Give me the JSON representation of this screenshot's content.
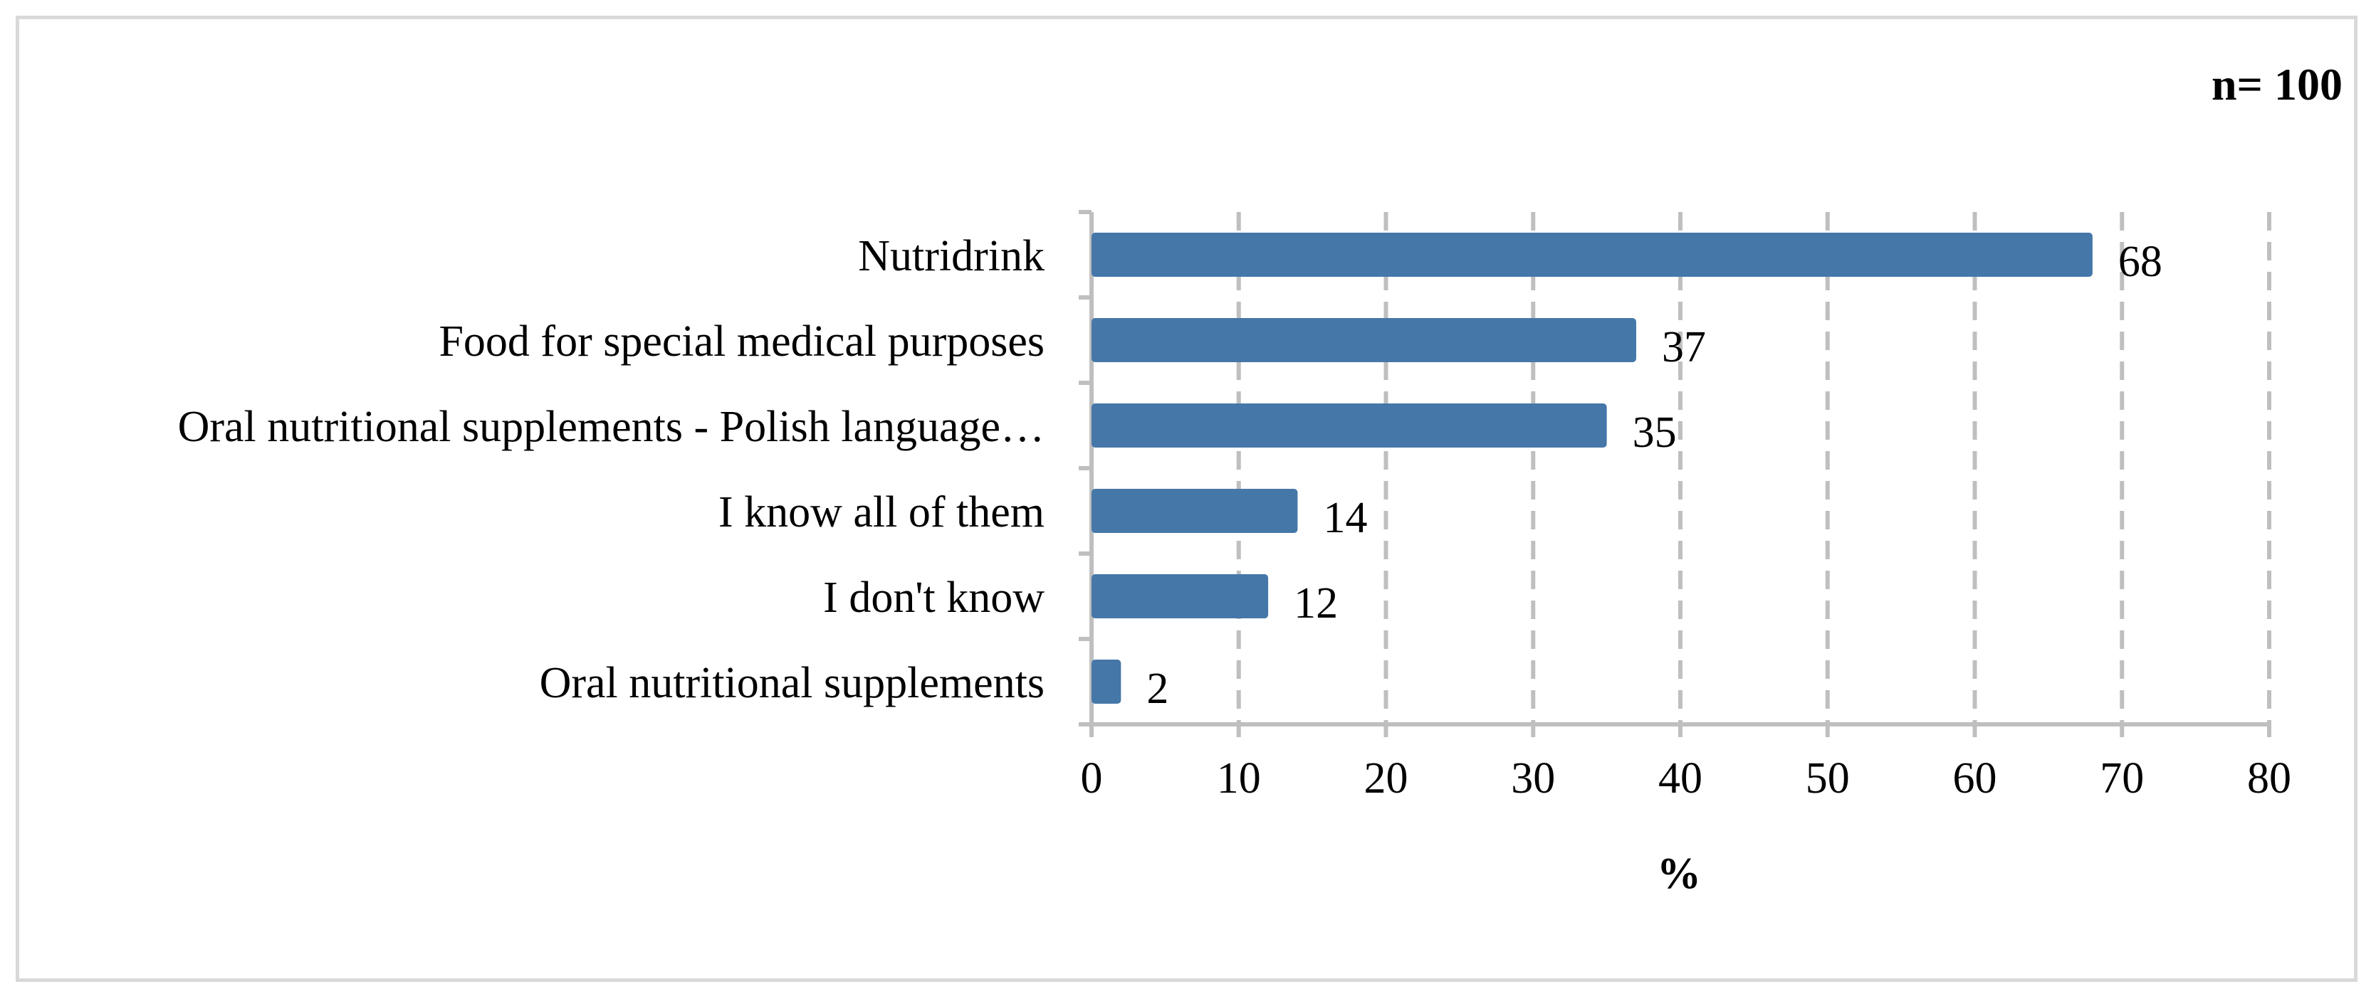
{
  "chart_data": {
    "type": "bar",
    "orientation": "horizontal",
    "title": "",
    "annotation": "n= 100",
    "categories": [
      "Nutridrink",
      "Food for special medical purposes",
      "Oral nutritional supplements - Polish language…",
      "I know all of them",
      "I don't know",
      "Oral nutritional supplements"
    ],
    "values": [
      68,
      37,
      35,
      14,
      12,
      2
    ],
    "data_labels": [
      "68",
      "37",
      "35",
      "14",
      "12",
      "2"
    ],
    "xlabel": "%",
    "ylabel": "",
    "xlim": [
      0,
      80
    ],
    "xticks": [
      0,
      10,
      20,
      30,
      40,
      50,
      60,
      70,
      80
    ],
    "xtick_labels": [
      "0",
      "10",
      "20",
      "30",
      "40",
      "50",
      "60",
      "70",
      "80"
    ],
    "grid": "vertical dashed",
    "bar_color": "#4577a8",
    "legend": "none"
  }
}
